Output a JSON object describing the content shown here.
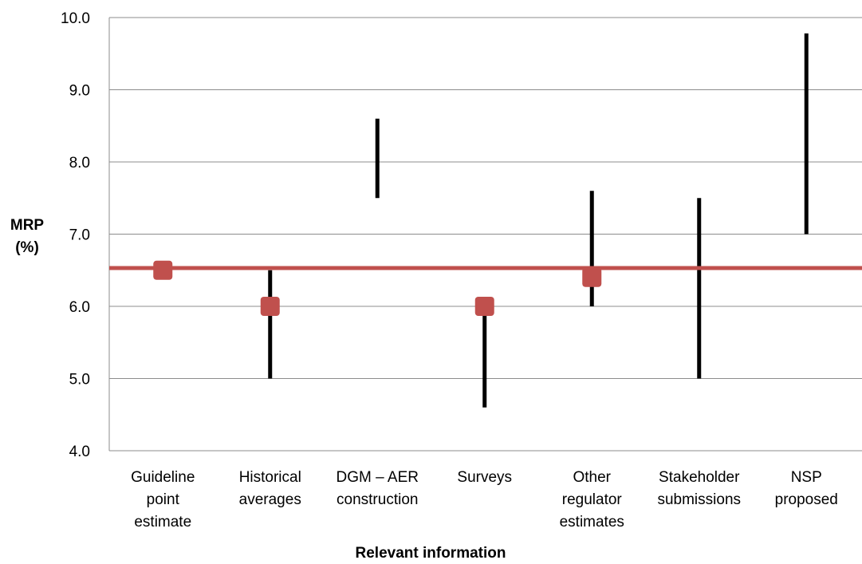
{
  "chart_data": {
    "type": "range",
    "xlabel": "Relevant information",
    "ylabel": [
      "MRP",
      "(%)"
    ],
    "ylim": [
      4.0,
      10.0
    ],
    "yticks": [
      "4.0",
      "5.0",
      "6.0",
      "7.0",
      "8.0",
      "9.0",
      "10.0"
    ],
    "grid": true,
    "categories": [
      [
        "Guideline",
        "point",
        "estimate"
      ],
      [
        "Historical",
        "averages"
      ],
      [
        "DGM – AER",
        "construction"
      ],
      [
        "Surveys"
      ],
      [
        "Other",
        "regulator",
        "estimates"
      ],
      [
        "Stakeholder",
        "submissions"
      ],
      [
        "NSP",
        "proposed"
      ]
    ],
    "ranges": [
      {
        "low": null,
        "high": null
      },
      {
        "low": 5.0,
        "high": 6.5
      },
      {
        "low": 7.5,
        "high": 8.6
      },
      {
        "low": 4.6,
        "high": 6.0
      },
      {
        "low": 6.0,
        "high": 7.6
      },
      {
        "low": 5.0,
        "high": 7.5
      },
      {
        "low": 7.0,
        "high": 9.78
      }
    ],
    "points": [
      6.5,
      6.0,
      null,
      6.0,
      6.4,
      null,
      null
    ],
    "reference_line": 6.53,
    "colors": {
      "range": "#000000",
      "point": "#c0504d",
      "reference": "#c0504d",
      "grid": "#8c8c8c"
    }
  }
}
